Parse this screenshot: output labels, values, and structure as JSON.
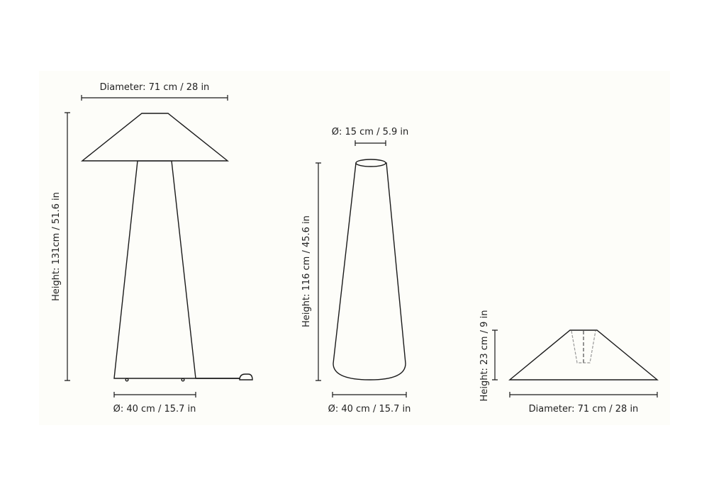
{
  "floor_lamp": {
    "diameter_label": "Diameter: 71 cm / 28 in",
    "height_label": "Height: 131cm / 51.6 in",
    "base_label": "Ø: 40 cm / 15.7 in"
  },
  "base_only": {
    "top_label": "Ø: 15 cm / 5.9 in",
    "height_label": "Height: 116 cm / 45.6 in",
    "base_label": "Ø: 40 cm / 15.7 in"
  },
  "shade_only": {
    "height_label": "Height: 23 cm / 9 in",
    "diameter_label": "Diameter: 71 cm / 28 in"
  }
}
